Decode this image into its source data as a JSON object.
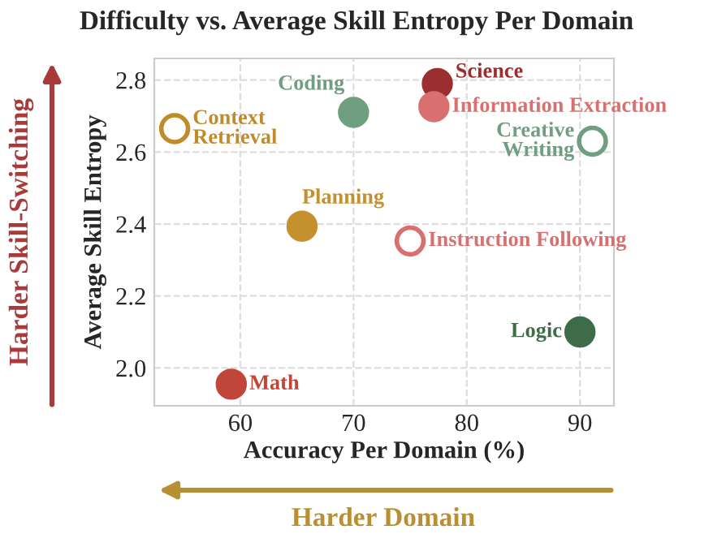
{
  "chart_data": {
    "type": "scatter",
    "title": "Difficulty vs. Average Skill Entropy Per Domain",
    "xlabel": "Accuracy Per Domain (%)",
    "ylabel": "Average Skill Entropy",
    "annotations": [
      "Harder Skill-Switching",
      "Harder Domain"
    ],
    "xlim": [
      52.4,
      93.0
    ],
    "xticks": [
      60,
      70,
      80,
      90
    ],
    "ylim": [
      1.895,
      2.86
    ],
    "yticks": [
      {
        "value": 2.0,
        "label": "2.0"
      },
      2.2,
      2.4,
      2.6,
      2.8
    ],
    "grid": true,
    "marker": "circle",
    "series": [
      {
        "name": "Context Retrieval",
        "color": "#c08b2a",
        "x": [
          54.2
        ],
        "values": [
          2.665
        ]
      },
      {
        "name": "Coding",
        "color": "#6f9e80",
        "x": [
          70.0
        ],
        "values": [
          2.71
        ]
      },
      {
        "name": "Science",
        "color": "#9b2f2f",
        "x": [
          77.4
        ],
        "values": [
          2.79
        ]
      },
      {
        "name": "Information Extraction",
        "color": "#d97070",
        "x": [
          77.1
        ],
        "values": [
          2.726
        ]
      },
      {
        "name": "Creative Writing",
        "color": "#6f9e80",
        "x": [
          91.1
        ],
        "values": [
          2.63
        ]
      },
      {
        "name": "Planning",
        "color": "#c4912e",
        "x": [
          65.45
        ],
        "values": [
          2.394
        ]
      },
      {
        "name": "Instruction Following",
        "color": "#d97070",
        "x": [
          75.0
        ],
        "values": [
          2.353
        ]
      },
      {
        "name": "Logic",
        "color": "#3e6b48",
        "x": [
          90.0
        ],
        "values": [
          2.1
        ]
      },
      {
        "name": "Math",
        "color": "#c0463a",
        "x": [
          59.2
        ],
        "values": [
          1.955
        ]
      }
    ]
  }
}
